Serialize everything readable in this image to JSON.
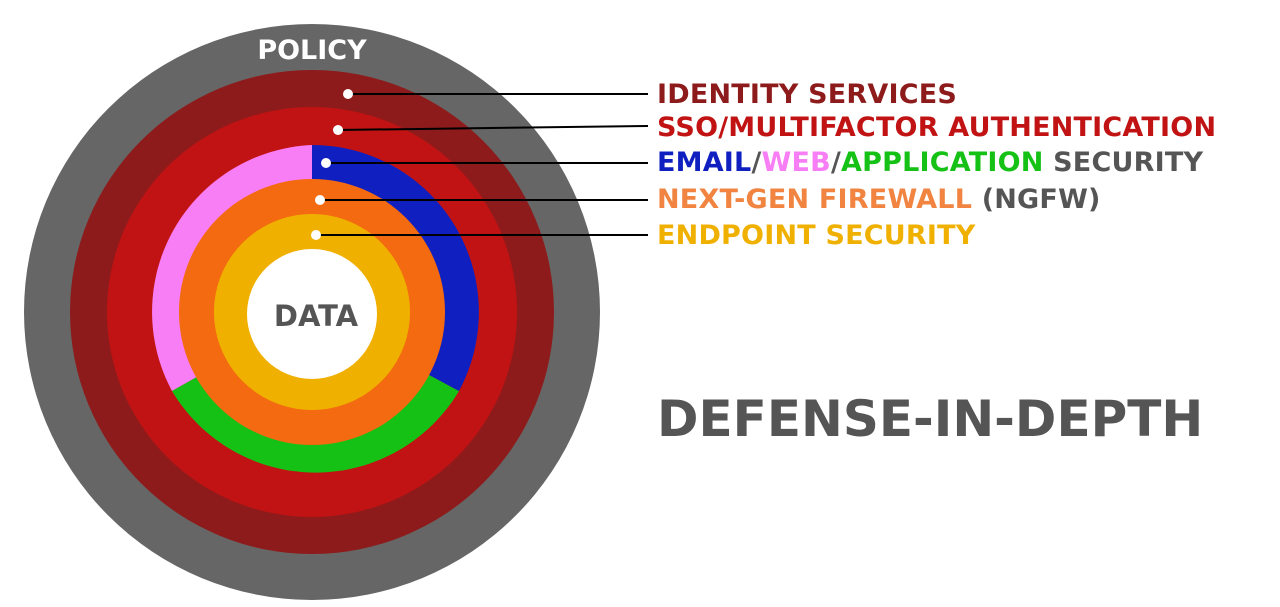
{
  "title": "DEFENSE-IN-DEPTH",
  "colors": {
    "policy": "#666666",
    "identity": "#8e1b1b",
    "sso": "#c11313",
    "email": "#1020c0",
    "web": "#f87ef5",
    "application": "#16c116",
    "firewall": "#f36a10",
    "endpoint": "#f0b000",
    "data": "#ffffff",
    "text_dark": "#555555",
    "firewall_text": "#f08440",
    "endpoint_text": "#f0b000"
  },
  "rings": {
    "policy": "POLICY",
    "data": "DATA"
  },
  "labels": {
    "identity": "IDENTITY SERVICES",
    "sso": "SSO/MULTIFACTOR AUTHENTICATION",
    "email_part": "EMAIL",
    "slash_1": "/",
    "web_part": "WEB",
    "slash_2": "/",
    "application_part": "APPLICATION",
    "security_part": " SECURITY",
    "firewall_part": "NEXT-GEN FIREWALL",
    "ngfw_part": " (NGFW)",
    "endpoint": "ENDPOINT SECURITY"
  }
}
